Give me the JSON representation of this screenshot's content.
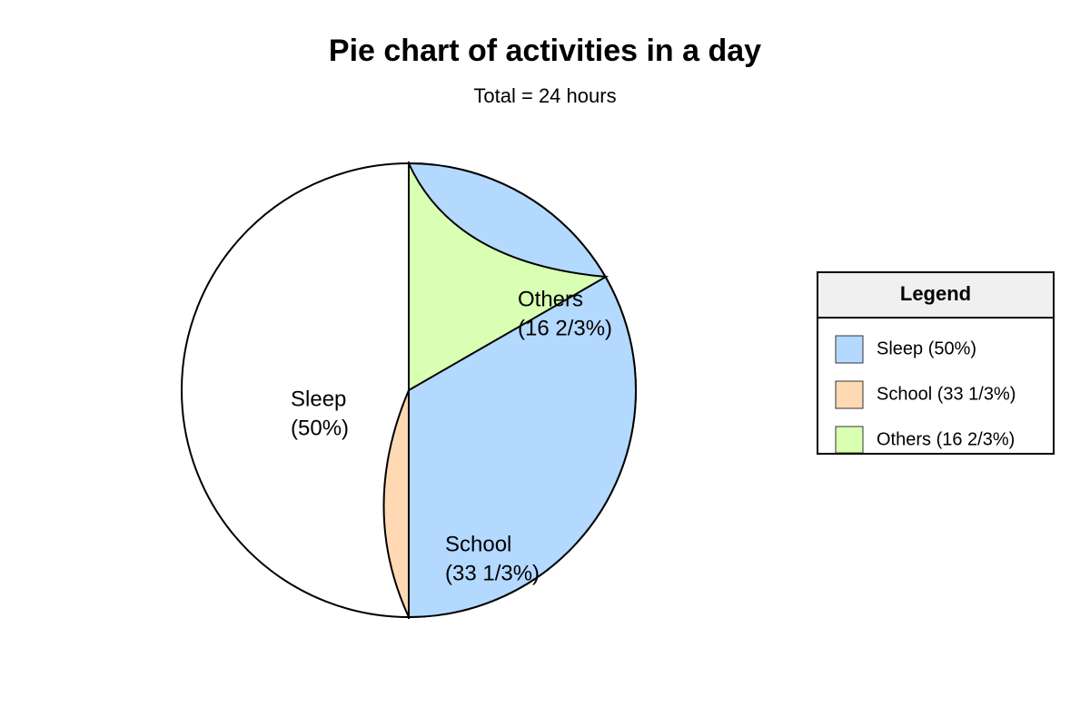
{
  "title": "Pie chart of activities in a day",
  "subtitle": "Total = 24 hours",
  "slices": [
    {
      "name": "Sleep",
      "share": "(50%)"
    },
    {
      "name": "School",
      "share": "(33 1/3%)"
    },
    {
      "name": "Others",
      "share": "(16 2/3%)"
    }
  ],
  "legend": {
    "title": "Legend",
    "items": [
      "Sleep (50%)",
      "School (33 1/3%)",
      "Others (16 2/3%)"
    ]
  }
}
